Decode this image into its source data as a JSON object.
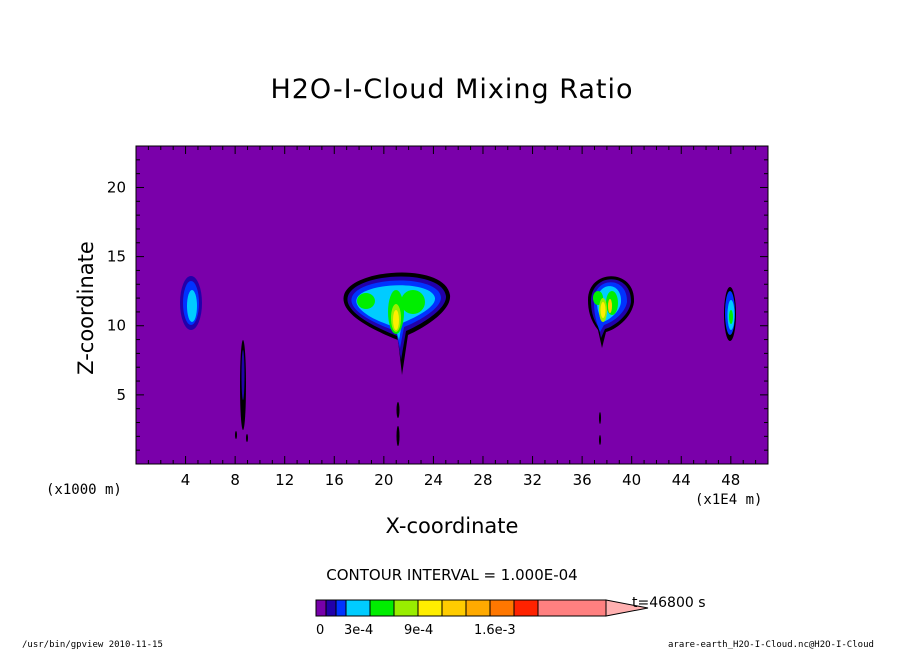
{
  "chart_data": {
    "type": "contour",
    "title": "H2O-I-Cloud Mixing Ratio",
    "xlabel": "X-coordinate",
    "ylabel": "Z-coordinate",
    "x_unit_left": "(x1000 m)",
    "x_unit_right": "(x1E4 m)",
    "xlim": [
      0,
      51
    ],
    "ylim": [
      0,
      23
    ],
    "x_ticks": [
      4,
      8,
      12,
      16,
      20,
      24,
      28,
      32,
      36,
      40,
      44,
      48
    ],
    "y_ticks": [
      5,
      10,
      15,
      20
    ],
    "contour_interval": "CONTOUR INTERVAL = 1.000E-04",
    "time_label": "t=46800 s",
    "colorbar_labels": [
      "0",
      "3e-4",
      "9e-4",
      "1.6e-3"
    ],
    "colorbar_colors": [
      "#7700aa",
      "#2200aa",
      "#0033ff",
      "#00ccff",
      "#00ee00",
      "#99ee00",
      "#ffee00",
      "#ffcc00",
      "#ffaa00",
      "#ff7700",
      "#ff2200",
      "#ff8080",
      "#ffb0b0"
    ],
    "background_color": "#7a00aa",
    "features": [
      {
        "x": 4.5,
        "z": 11.5,
        "peak": 0.0002
      },
      {
        "x": 8.7,
        "z": 5.0,
        "peak": 0.0001
      },
      {
        "x": 21.5,
        "z": 12.0,
        "peak": 0.0009
      },
      {
        "x": 38.0,
        "z": 11.5,
        "peak": 0.0009
      },
      {
        "x": 48.0,
        "z": 11.0,
        "peak": 0.0004
      }
    ]
  },
  "footer": {
    "left": "/usr/bin/gpview  2010-11-15",
    "right": "arare-earth_H2O-I-Cloud.nc@H2O-I-Cloud"
  }
}
